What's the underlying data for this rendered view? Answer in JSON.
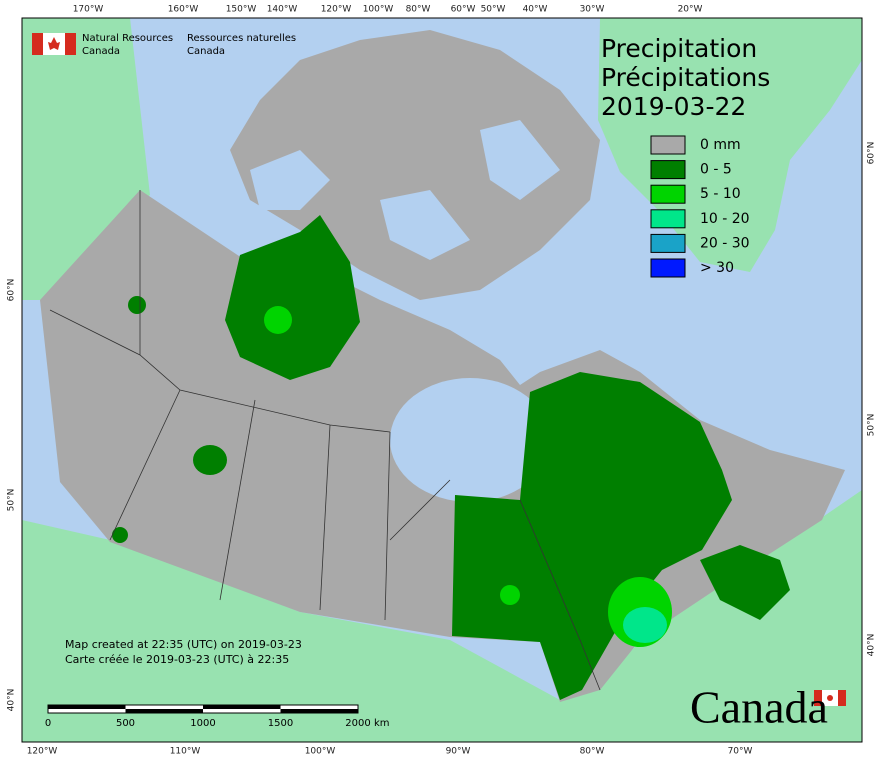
{
  "header": {
    "org_en": [
      "Natural Resources",
      "Canada"
    ],
    "org_fr": [
      "Ressources naturelles",
      "Canada"
    ]
  },
  "title": [
    "Precipitation",
    "Précipitations"
  ],
  "date": "2019-03-22",
  "legend": [
    {
      "label": "0 mm",
      "color": "#a9a9a9"
    },
    {
      "label": "0 - 5",
      "color": "#007f00"
    },
    {
      "label": "5 - 10",
      "color": "#00d400"
    },
    {
      "label": "10 - 20",
      "color": "#00e68a"
    },
    {
      "label": "20 - 30",
      "color": "#1aa3c8"
    },
    {
      "label": "> 30",
      "color": "#0019ff"
    }
  ],
  "graticule": {
    "top": [
      "170°W",
      "160°W",
      "150°W",
      "140°W",
      "120°W",
      "100°W",
      "80°W",
      "60°W",
      "50°W",
      "40°W",
      "30°W",
      "20°W"
    ],
    "bottom": [
      "120°W",
      "110°W",
      "100°W",
      "90°W",
      "80°W",
      "70°W"
    ],
    "left": [
      "60°N",
      "50°N",
      "40°N"
    ],
    "right": [
      "60°N",
      "50°N",
      "40°N"
    ]
  },
  "credits": [
    "Map created at 22:35 (UTC) on 2019-03-23",
    "Carte créée le 2019-03-23 (UTC) à 22:35"
  ],
  "scale": {
    "ticks": [
      "0",
      "500",
      "1000",
      "1500",
      "2000"
    ],
    "unit": "km"
  },
  "wordmark": "Canada"
}
